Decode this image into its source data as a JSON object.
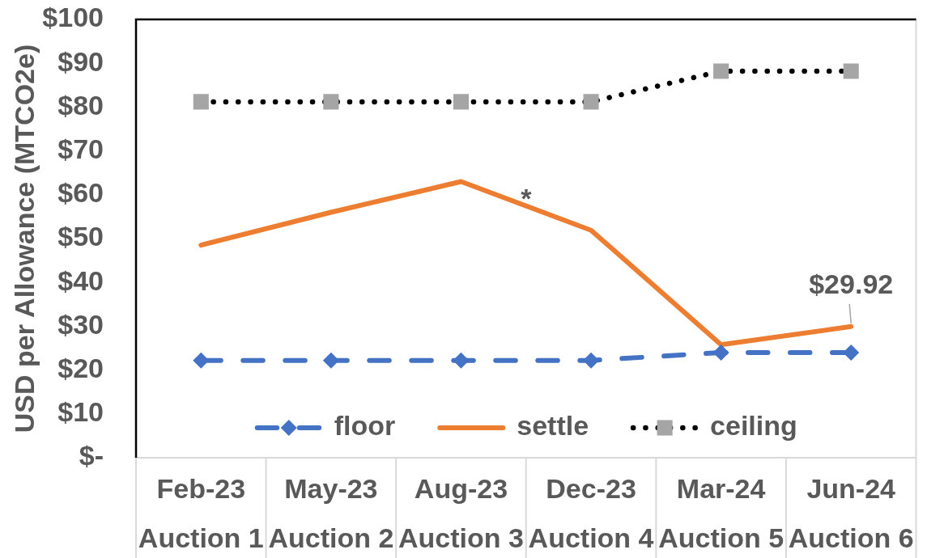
{
  "chart_data": {
    "type": "line",
    "ylabel": "USD per Allowance (MTCO2e)",
    "categories": [
      "Feb-23\nAuction 1",
      "May-23\nAuction 2",
      "Aug-23\nAuction 3",
      "Dec-23\nAuction 4",
      "Mar-24\nAuction 5",
      "Jun-24\nAuction 6"
    ],
    "series": [
      {
        "name": "floor",
        "color": "#4472c4",
        "marker": "diamond",
        "line_style": "dashed",
        "values": [
          22.2,
          22.2,
          22.2,
          22.2,
          24.0,
          24.0
        ]
      },
      {
        "name": "settle",
        "color": "#ed7d31",
        "marker": "none",
        "line_style": "solid",
        "values": [
          48.5,
          56.0,
          63.0,
          51.9,
          25.8,
          29.92
        ],
        "value_labels": [
          null,
          null,
          null,
          null,
          null,
          "$29.92"
        ]
      },
      {
        "name": "ceiling",
        "color": "#000000",
        "colors": [
          "#a5a5a5",
          "#a5a5a5",
          "#a5a5a5",
          "#a5a5a5",
          "#a5a5a5",
          "#a5a5a5"
        ],
        "marker": "square",
        "line_style": "dotted",
        "values": [
          81.2,
          81.2,
          81.2,
          81.2,
          88.2,
          88.2
        ]
      }
    ],
    "ylim": [
      0,
      100
    ],
    "yticks": [
      {
        "value": 0,
        "label": "$-"
      },
      {
        "value": 10,
        "label": "$10"
      },
      {
        "value": 20,
        "label": "$20"
      },
      {
        "value": 30,
        "label": "$30"
      },
      {
        "value": 40,
        "label": "$40"
      },
      {
        "value": 50,
        "label": "$50"
      },
      {
        "value": 60,
        "label": "$60"
      },
      {
        "value": 70,
        "label": "$70"
      },
      {
        "value": 80,
        "label": "$80"
      },
      {
        "value": 90,
        "label": "$90"
      },
      {
        "value": 100,
        "label": "$100"
      }
    ],
    "legend": "bottom",
    "annotations": [
      "*"
    ]
  }
}
